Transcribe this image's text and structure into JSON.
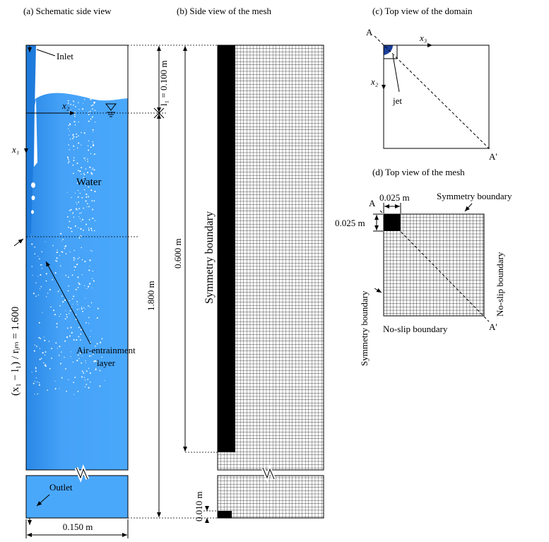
{
  "panels": {
    "a": {
      "title": "(a) Schematic side view",
      "inlet": "Inlet",
      "x2": "x₂",
      "x1": "x₁",
      "water": "Water",
      "depth_ratio": "(x₁ − l₁) / rᵢₘ = 1.600",
      "air_layer": [
        "Air-entrainment",
        "layer"
      ],
      "outlet": "Outlet",
      "width": "0.150 m",
      "l1": "l₁ = 0.100 m",
      "height": "1.800 m"
    },
    "b": {
      "title": "(b) Side view of the mesh",
      "refined_height": "0.600 m",
      "symmetry": "Symmetry boundary",
      "bottom": "0.010 m"
    },
    "c": {
      "title": "(c) Top view of the domain",
      "a": "A",
      "x3": "x₃",
      "x2": "x₂",
      "jet": "jet",
      "a_prime": "A'"
    },
    "d": {
      "title": "(d) Top view of the mesh",
      "a": "A",
      "cell_width": "0.025 m",
      "cell_height": "0.025 m",
      "sym_top": "Symmetry boundary",
      "sym_left": "Symmetry boundary",
      "noslip_right": "No-slip boundary",
      "noslip_bottom": "No-slip boundary",
      "a_prime": "A'"
    }
  }
}
